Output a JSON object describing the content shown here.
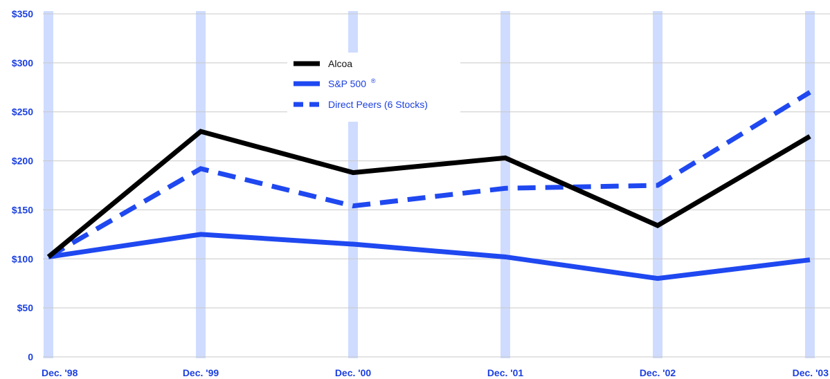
{
  "chart_data": {
    "type": "line",
    "title": "",
    "xlabel": "",
    "ylabel": "",
    "categories": [
      "Dec. '98",
      "Dec. '99",
      "Dec. '00",
      "Dec. '01",
      "Dec. '02",
      "Dec. '03"
    ],
    "y_tick_labels": [
      "0",
      "$50",
      "$100",
      "$150",
      "$200",
      "$250",
      "$300",
      "$350"
    ],
    "y_tick_values": [
      0,
      50,
      100,
      150,
      200,
      250,
      300,
      350
    ],
    "ylim": [
      0,
      350
    ],
    "grid": "horizontal",
    "legend_position": "top-center",
    "series": [
      {
        "name": "Alcoa",
        "values": [
          102,
          230,
          188,
          203,
          134,
          225
        ],
        "color": "#000000",
        "style": "solid"
      },
      {
        "name": "S&P 500",
        "name_superscript": "®",
        "values": [
          102,
          125,
          115,
          102,
          80,
          99
        ],
        "color": "#1f48f0",
        "style": "solid"
      },
      {
        "name": "Direct Peers (6 Stocks)",
        "values": [
          102,
          192,
          154,
          172,
          175,
          270
        ],
        "color": "#1f48f0",
        "style": "dashed"
      }
    ],
    "colors": {
      "column_band": "#cfdcff",
      "grid": "#c8c8c8",
      "axis_text": "#1a3fe0"
    }
  }
}
